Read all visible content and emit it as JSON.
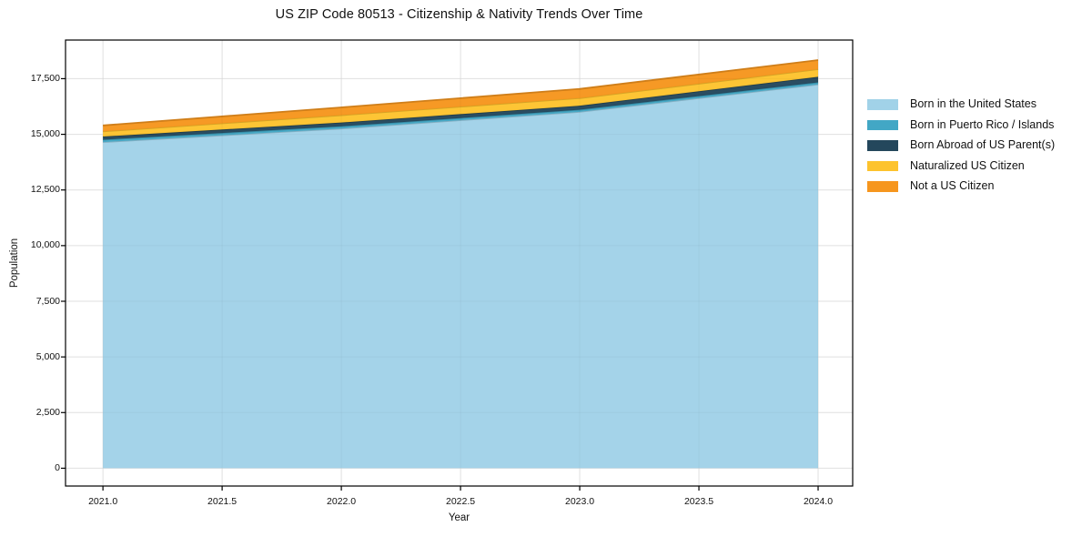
{
  "title": "US ZIP Code 80513 - Citizenship & Nativity Trends Over Time",
  "axes": {
    "x_label": "Year",
    "y_label": "Population",
    "x_tick_labels": [
      "2021.0",
      "2021.5",
      "2022.0",
      "2022.5",
      "2023.0",
      "2023.5",
      "2024.0"
    ],
    "y_tick_labels": [
      "0",
      "2,500",
      "5,000",
      "7,500",
      "10,000",
      "12,500",
      "15,000",
      "17,500"
    ]
  },
  "chart_data": {
    "type": "area",
    "stacked": true,
    "title": "US ZIP Code 80513 - Citizenship & Nativity Trends Over Time",
    "xlabel": "Year",
    "ylabel": "Population",
    "x": [
      2021,
      2022,
      2023,
      2024
    ],
    "series": [
      {
        "name": "Born in the United States",
        "color": "#a1d2e8",
        "values": [
          14650,
          15260,
          16010,
          17240
        ]
      },
      {
        "name": "Born in Puerto Rico / Islands",
        "color": "#42a7c5",
        "values": [
          110,
          100,
          95,
          95
        ]
      },
      {
        "name": "Born Abroad of US Parent(s)",
        "color": "#24475c",
        "values": [
          140,
          170,
          180,
          250
        ]
      },
      {
        "name": "Naturalized US Citizen",
        "color": "#fdc32e",
        "values": [
          230,
          330,
          340,
          340
        ]
      },
      {
        "name": "Not a US Citizen",
        "color": "#f6961e",
        "values": [
          270,
          350,
          415,
          410
        ]
      }
    ],
    "stack_totals": [
      15400,
      16210,
      17040,
      18335
    ],
    "x_ticks": [
      2021.0,
      2021.5,
      2022.0,
      2022.5,
      2023.0,
      2023.5,
      2024.0
    ],
    "y_ticks": [
      0,
      2500,
      5000,
      7500,
      10000,
      12500,
      15000,
      17500
    ],
    "xlim": [
      2020.843,
      2024.145
    ],
    "ylim": [
      -800,
      19235
    ],
    "grid": true,
    "grid_color": "#e8e8e8",
    "spine_color": "#000000",
    "legend_position": "right-outside",
    "background": "#ffffff"
  }
}
